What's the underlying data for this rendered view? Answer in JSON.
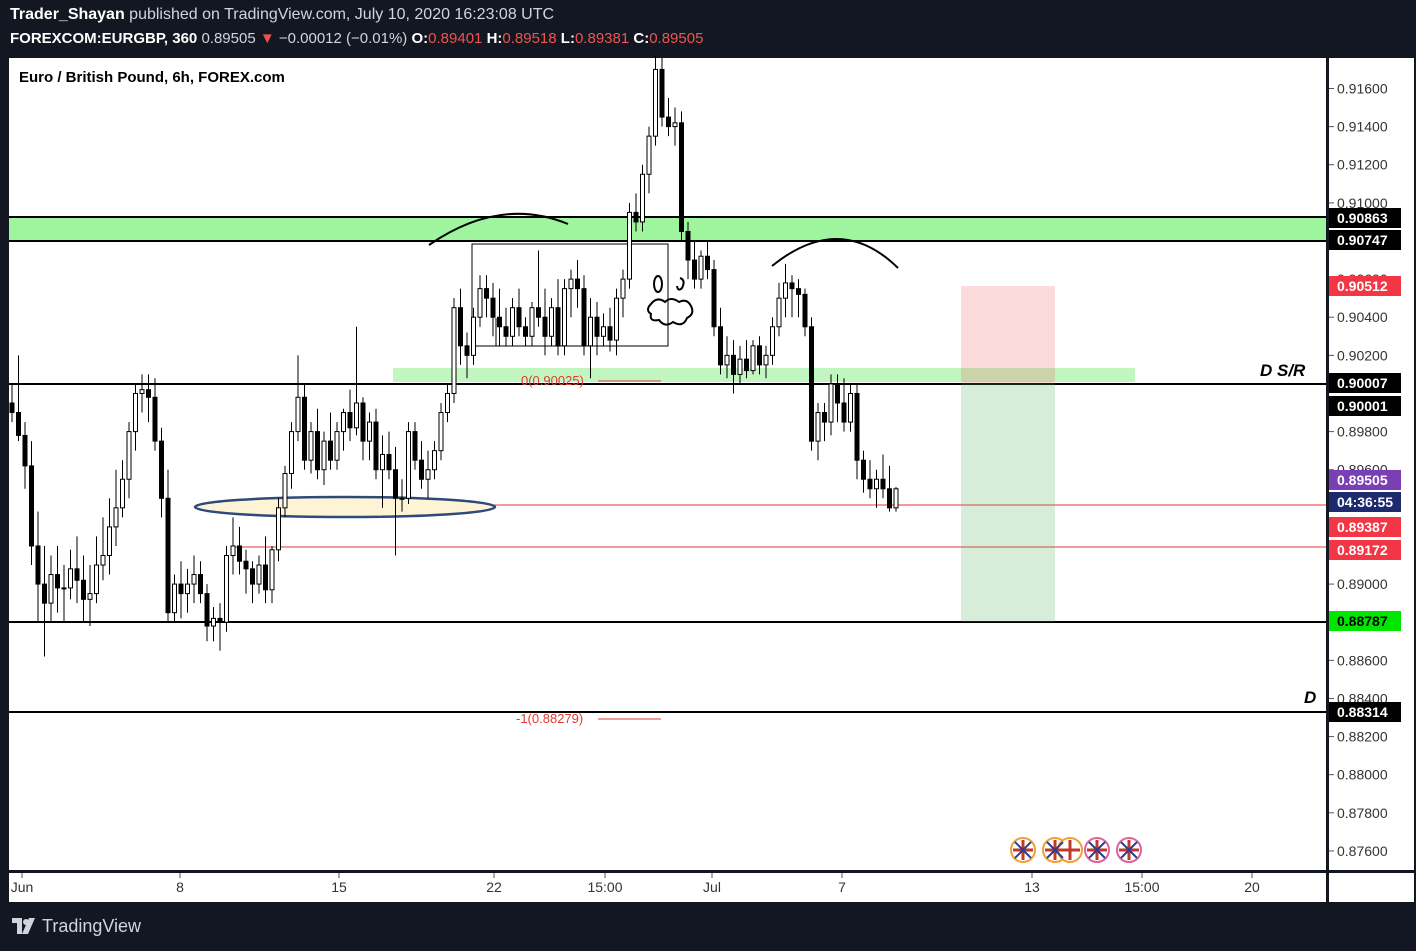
{
  "header": {
    "author": "Trader_Shayan",
    "published": " published on TradingView.com, July 10, 2020 16:23:08 UTC",
    "symbol": "FOREXCOM:EURGBP, 360",
    "last": "0.89505",
    "arrow": "▼",
    "change": "−0.00012 (−0.01%)",
    "o_label": "O:",
    "o_value": "0.89401",
    "h_label": "H:",
    "h_value": "0.89518",
    "l_label": "L:",
    "l_value": "0.89381",
    "c_label": "C:",
    "c_value": "0.89505"
  },
  "footer": {
    "brand": "TradingView"
  },
  "colors": {
    "up": "#ffffff",
    "down": "#000000",
    "frame": "#131722",
    "zone": "#9ef59e",
    "red_label": "#f23645",
    "green_label": "#00e600",
    "purple_label": "#7b3fb5",
    "fib": "#e53935"
  },
  "chart_data": {
    "type": "candlestick",
    "title": "Euro / British Pound, 6h, FOREX.com",
    "ylim": [
      0.875,
      0.9176
    ],
    "y_ticks": [
      "0.91600",
      "0.91400",
      "0.91200",
      "0.91000",
      "0.90600",
      "0.90400",
      "0.90200",
      "0.89800",
      "0.89600",
      "0.89000",
      "0.88600",
      "0.88400",
      "0.88200",
      "0.88000",
      "0.87800",
      "0.87600"
    ],
    "x_ticks": [
      "Jun",
      "8",
      "15",
      "22",
      "15:00",
      "Jul",
      "7",
      "13",
      "15:00",
      "20"
    ],
    "price_labels": [
      {
        "text": "0.90863",
        "style": "black"
      },
      {
        "text": "0.90747",
        "style": "black"
      },
      {
        "text": "0.90512",
        "style": "red"
      },
      {
        "text": "0.90007",
        "style": "black"
      },
      {
        "text": "0.90001",
        "style": "black"
      },
      {
        "text": "0.89505",
        "style": "purple"
      },
      {
        "text": "04:36:55",
        "style": "navy"
      },
      {
        "text": "0.89387",
        "style": "red"
      },
      {
        "text": "0.89172",
        "style": "red"
      },
      {
        "text": "0.88787",
        "style": "green"
      },
      {
        "text": "0.88314",
        "style": "black"
      }
    ],
    "annotations": {
      "ds_r": "D S/R",
      "d": "D",
      "fib_zero": "0(0.90025)",
      "fib_minus_one": "-1(0.88279)"
    },
    "levels": {
      "green_zone": [
        0.90747,
        0.90863
      ],
      "ds_r": 0.90007,
      "support_d": 0.88314,
      "target": 0.88787,
      "red_lines": [
        0.89387,
        0.89172
      ],
      "stop": 0.90512,
      "last": 0.89505
    },
    "candles": [
      [
        0.8995,
        0.9005,
        0.8985,
        0.899
      ],
      [
        0.899,
        0.902,
        0.8975,
        0.8978
      ],
      [
        0.8978,
        0.8985,
        0.895,
        0.8962
      ],
      [
        0.8962,
        0.8975,
        0.891,
        0.892
      ],
      [
        0.892,
        0.8938,
        0.888,
        0.89
      ],
      [
        0.89,
        0.892,
        0.8862,
        0.889
      ],
      [
        0.889,
        0.8915,
        0.888,
        0.8905
      ],
      [
        0.8905,
        0.892,
        0.8885,
        0.8898
      ],
      [
        0.8898,
        0.891,
        0.888,
        0.8898
      ],
      [
        0.8898,
        0.8918,
        0.8892,
        0.8908
      ],
      [
        0.8908,
        0.8925,
        0.889,
        0.8902
      ],
      [
        0.8902,
        0.8915,
        0.888,
        0.8892
      ],
      [
        0.8892,
        0.891,
        0.8878,
        0.8895
      ],
      [
        0.8895,
        0.8925,
        0.889,
        0.891
      ],
      [
        0.891,
        0.8935,
        0.8902,
        0.8915
      ],
      [
        0.8915,
        0.8945,
        0.8905,
        0.893
      ],
      [
        0.893,
        0.896,
        0.892,
        0.894
      ],
      [
        0.894,
        0.8965,
        0.8935,
        0.8955
      ],
      [
        0.8955,
        0.8985,
        0.8945,
        0.898
      ],
      [
        0.898,
        0.9005,
        0.897,
        0.9
      ],
      [
        0.9,
        0.901,
        0.899,
        0.9002
      ],
      [
        0.9002,
        0.901,
        0.8985,
        0.8998
      ],
      [
        0.8998,
        0.9008,
        0.897,
        0.8975
      ],
      [
        0.8975,
        0.8982,
        0.8935,
        0.8945
      ],
      [
        0.8945,
        0.896,
        0.888,
        0.8885
      ],
      [
        0.8885,
        0.8905,
        0.888,
        0.89
      ],
      [
        0.89,
        0.8912,
        0.8882,
        0.8895
      ],
      [
        0.8895,
        0.8908,
        0.8885,
        0.89
      ],
      [
        0.89,
        0.8915,
        0.889,
        0.8905
      ],
      [
        0.8905,
        0.8912,
        0.889,
        0.8895
      ],
      [
        0.8895,
        0.89,
        0.887,
        0.8878
      ],
      [
        0.8878,
        0.8888,
        0.887,
        0.8882
      ],
      [
        0.8882,
        0.889,
        0.8865,
        0.888
      ],
      [
        0.888,
        0.892,
        0.8875,
        0.8915
      ],
      [
        0.8915,
        0.8935,
        0.8905,
        0.892
      ],
      [
        0.892,
        0.893,
        0.8905,
        0.8912
      ],
      [
        0.8912,
        0.8918,
        0.8895,
        0.8908
      ],
      [
        0.8908,
        0.8912,
        0.889,
        0.89
      ],
      [
        0.89,
        0.8915,
        0.8895,
        0.891
      ],
      [
        0.891,
        0.8925,
        0.889,
        0.8897
      ],
      [
        0.8897,
        0.892,
        0.889,
        0.8918
      ],
      [
        0.8918,
        0.8945,
        0.8912,
        0.894
      ],
      [
        0.894,
        0.8962,
        0.8935,
        0.8958
      ],
      [
        0.8958,
        0.8985,
        0.895,
        0.898
      ],
      [
        0.898,
        0.902,
        0.8975,
        0.8998
      ],
      [
        0.8998,
        0.9005,
        0.896,
        0.8965
      ],
      [
        0.8965,
        0.8985,
        0.8958,
        0.898
      ],
      [
        0.898,
        0.8992,
        0.8955,
        0.896
      ],
      [
        0.896,
        0.898,
        0.8952,
        0.8975
      ],
      [
        0.8975,
        0.899,
        0.896,
        0.8965
      ],
      [
        0.8965,
        0.8985,
        0.896,
        0.898
      ],
      [
        0.898,
        0.8992,
        0.897,
        0.899
      ],
      [
        0.899,
        0.9002,
        0.8975,
        0.8982
      ],
      [
        0.8982,
        0.9035,
        0.8978,
        0.8995
      ],
      [
        0.8995,
        0.8998,
        0.8965,
        0.8975
      ],
      [
        0.8975,
        0.899,
        0.8965,
        0.8985
      ],
      [
        0.8985,
        0.8992,
        0.8955,
        0.896
      ],
      [
        0.896,
        0.8978,
        0.894,
        0.8968
      ],
      [
        0.8968,
        0.898,
        0.8955,
        0.896
      ],
      [
        0.896,
        0.8972,
        0.8915,
        0.8945
      ],
      [
        0.8945,
        0.8955,
        0.8938,
        0.8945
      ],
      [
        0.8945,
        0.8985,
        0.8942,
        0.898
      ],
      [
        0.898,
        0.8985,
        0.896,
        0.8965
      ],
      [
        0.8965,
        0.8975,
        0.895,
        0.8955
      ],
      [
        0.8955,
        0.897,
        0.8945,
        0.896
      ],
      [
        0.896,
        0.8975,
        0.8955,
        0.897
      ],
      [
        0.897,
        0.8995,
        0.8965,
        0.899
      ],
      [
        0.899,
        0.9005,
        0.8985,
        0.9
      ],
      [
        0.9,
        0.905,
        0.8995,
        0.9045
      ],
      [
        0.9045,
        0.9055,
        0.9015,
        0.9025
      ],
      [
        0.9025,
        0.9032,
        0.9008,
        0.902
      ],
      [
        0.902,
        0.9045,
        0.9015,
        0.904
      ],
      [
        0.904,
        0.9062,
        0.9035,
        0.9055
      ],
      [
        0.9055,
        0.9062,
        0.904,
        0.905
      ],
      [
        0.905,
        0.9058,
        0.903,
        0.904
      ],
      [
        0.904,
        0.9055,
        0.9025,
        0.9035
      ],
      [
        0.9035,
        0.9045,
        0.9025,
        0.903
      ],
      [
        0.903,
        0.905,
        0.9025,
        0.9045
      ],
      [
        0.9045,
        0.9055,
        0.903,
        0.9035
      ],
      [
        0.9035,
        0.904,
        0.9025,
        0.903
      ],
      [
        0.903,
        0.9048,
        0.9025,
        0.9045
      ],
      [
        0.9045,
        0.9075,
        0.9035,
        0.904
      ],
      [
        0.904,
        0.9055,
        0.902,
        0.903
      ],
      [
        0.903,
        0.905,
        0.9025,
        0.9045
      ],
      [
        0.9045,
        0.906,
        0.902,
        0.9025
      ],
      [
        0.9025,
        0.906,
        0.902,
        0.9055
      ],
      [
        0.9055,
        0.9065,
        0.904,
        0.906
      ],
      [
        0.906,
        0.907,
        0.9045,
        0.9055
      ],
      [
        0.9055,
        0.9062,
        0.902,
        0.9025
      ],
      [
        0.9025,
        0.905,
        0.9008,
        0.904
      ],
      [
        0.904,
        0.9048,
        0.902,
        0.903
      ],
      [
        0.903,
        0.9042,
        0.9025,
        0.9035
      ],
      [
        0.9035,
        0.9045,
        0.9022,
        0.9028
      ],
      [
        0.9028,
        0.9055,
        0.902,
        0.905
      ],
      [
        0.905,
        0.9065,
        0.904,
        0.906
      ],
      [
        0.906,
        0.91,
        0.9055,
        0.9095
      ],
      [
        0.9095,
        0.9105,
        0.9085,
        0.909
      ],
      [
        0.909,
        0.912,
        0.9085,
        0.9115
      ],
      [
        0.9115,
        0.914,
        0.9105,
        0.9135
      ],
      [
        0.9135,
        0.9178,
        0.913,
        0.917
      ],
      [
        0.917,
        0.9176,
        0.914,
        0.9145
      ],
      [
        0.9145,
        0.9155,
        0.9135,
        0.914
      ],
      [
        0.914,
        0.915,
        0.913,
        0.9142
      ],
      [
        0.9142,
        0.9148,
        0.908,
        0.9085
      ],
      [
        0.9085,
        0.909,
        0.906,
        0.907
      ],
      [
        0.907,
        0.908,
        0.9055,
        0.906
      ],
      [
        0.906,
        0.9075,
        0.9055,
        0.9072
      ],
      [
        0.9072,
        0.908,
        0.906,
        0.9065
      ],
      [
        0.9065,
        0.907,
        0.903,
        0.9035
      ],
      [
        0.9035,
        0.9045,
        0.901,
        0.9015
      ],
      [
        0.9015,
        0.903,
        0.9008,
        0.902
      ],
      [
        0.902,
        0.9028,
        0.9,
        0.901
      ],
      [
        0.901,
        0.9025,
        0.9005,
        0.9018
      ],
      [
        0.9018,
        0.9028,
        0.9008,
        0.9012
      ],
      [
        0.9012,
        0.9028,
        0.901,
        0.9025
      ],
      [
        0.9025,
        0.903,
        0.901,
        0.9015
      ],
      [
        0.9015,
        0.9025,
        0.9008,
        0.902
      ],
      [
        0.902,
        0.904,
        0.9015,
        0.9035
      ],
      [
        0.9035,
        0.9058,
        0.903,
        0.905
      ],
      [
        0.905,
        0.9068,
        0.904,
        0.9058
      ],
      [
        0.9058,
        0.9062,
        0.904,
        0.9055
      ],
      [
        0.9055,
        0.906,
        0.904,
        0.9052
      ],
      [
        0.9052,
        0.9055,
        0.903,
        0.9035
      ],
      [
        0.9035,
        0.904,
        0.897,
        0.8975
      ],
      [
        0.8975,
        0.8995,
        0.8965,
        0.899
      ],
      [
        0.899,
        0.8995,
        0.8975,
        0.8985
      ],
      [
        0.8985,
        0.901,
        0.8978,
        0.9005
      ],
      [
        0.9005,
        0.901,
        0.8985,
        0.8995
      ],
      [
        0.8995,
        0.9008,
        0.898,
        0.8985
      ],
      [
        0.8985,
        0.9005,
        0.898,
        0.9
      ],
      [
        0.9,
        0.9005,
        0.8955,
        0.8965
      ],
      [
        0.8965,
        0.897,
        0.8948,
        0.8955
      ],
      [
        0.8955,
        0.8965,
        0.8945,
        0.895
      ],
      [
        0.895,
        0.896,
        0.894,
        0.8955
      ],
      [
        0.8955,
        0.8968,
        0.8945,
        0.895
      ],
      [
        0.895,
        0.8962,
        0.8938,
        0.894
      ],
      [
        0.894,
        0.8951,
        0.8938,
        0.895
      ]
    ]
  }
}
